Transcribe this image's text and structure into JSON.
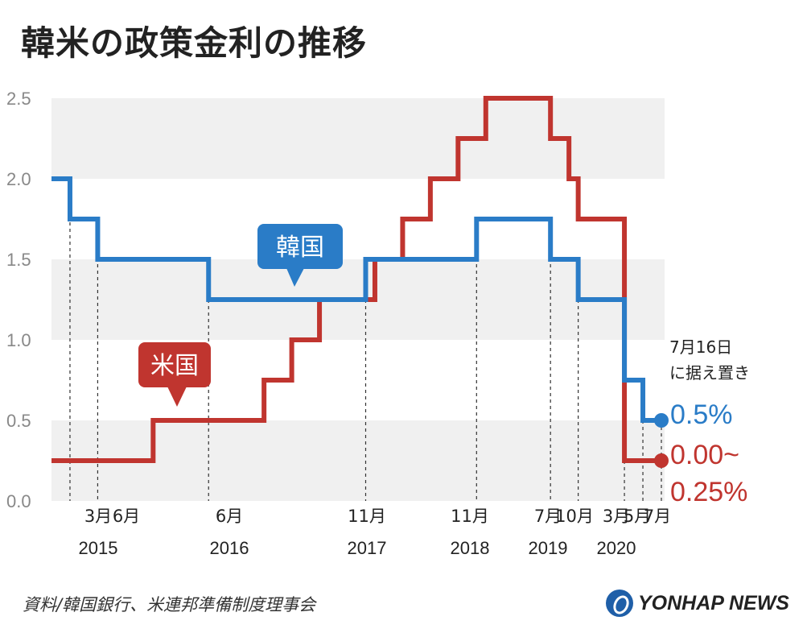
{
  "title": "韓米の政策金利の推移",
  "source": "資料/韓国銀行、米連邦準備制度理事会",
  "logo_text": "YONHAP NEWS",
  "colors": {
    "korea": "#2a7cc7",
    "us": "#c0352f",
    "band": "#f0f0f0",
    "axis_text": "#888888"
  },
  "chart_data": {
    "type": "line",
    "step": true,
    "ylim": [
      0,
      2.5
    ],
    "y_ticks": [
      "0.0",
      "0.5",
      "1.0",
      "1.5",
      "2.0",
      "2.5"
    ],
    "x_labels": [
      {
        "month": "3月",
        "year": "2015"
      },
      {
        "month": "6月",
        "year": ""
      },
      {
        "month": "6月",
        "year": "2016"
      },
      {
        "month": "11月",
        "year": "2017"
      },
      {
        "month": "11月",
        "year": "2018"
      },
      {
        "month": "7月",
        "year": "2019"
      },
      {
        "month": "10月",
        "year": ""
      },
      {
        "month": "3月",
        "year": "2020"
      },
      {
        "month": "5月",
        "year": ""
      },
      {
        "month": "7月",
        "year": ""
      }
    ],
    "series": [
      {
        "name": "韓国",
        "color": "#2a7cc7",
        "steps": [
          [
            "2015-01",
            2.0
          ],
          [
            "2015-03",
            1.75
          ],
          [
            "2015-06",
            1.5
          ],
          [
            "2016-06",
            1.25
          ],
          [
            "2017-11",
            1.5
          ],
          [
            "2018-11",
            1.75
          ],
          [
            "2019-07",
            1.5
          ],
          [
            "2019-10",
            1.25
          ],
          [
            "2020-03",
            0.75
          ],
          [
            "2020-05",
            0.5
          ],
          [
            "2020-07",
            0.5
          ]
        ],
        "end_label": "0.5%"
      },
      {
        "name": "米国",
        "color": "#c0352f",
        "steps": [
          [
            "2015-01",
            0.25
          ],
          [
            "2015-12",
            0.5
          ],
          [
            "2016-12",
            0.75
          ],
          [
            "2017-03",
            1.0
          ],
          [
            "2017-06",
            1.25
          ],
          [
            "2017-12",
            1.5
          ],
          [
            "2018-03",
            1.75
          ],
          [
            "2018-06",
            2.0
          ],
          [
            "2018-09",
            2.25
          ],
          [
            "2018-12",
            2.5
          ],
          [
            "2019-07",
            2.25
          ],
          [
            "2019-09",
            2.0
          ],
          [
            "2019-10",
            1.75
          ],
          [
            "2020-03",
            0.25
          ],
          [
            "2020-07",
            0.25
          ]
        ],
        "end_label_1": "0.00~",
        "end_label_2": "0.25%"
      }
    ],
    "annotation": [
      "7月16日",
      "に据え置き"
    ]
  }
}
